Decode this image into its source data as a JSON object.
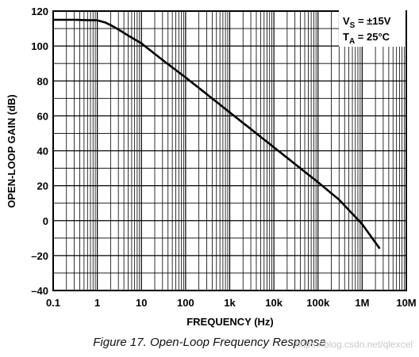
{
  "chart_data": {
    "type": "line",
    "xscale": "log",
    "xlim": [
      0.1,
      10000000
    ],
    "ylim": [
      -40,
      120
    ],
    "xlabel": "FREQUENCY (Hz)",
    "ylabel": "OPEN-LOOP GAIN (dB)",
    "xticks": [
      "0.1",
      "1",
      "10",
      "100",
      "1k",
      "10k",
      "100k",
      "1M",
      "10M"
    ],
    "yticks": [
      "120",
      "100",
      "80",
      "60",
      "40",
      "20",
      "0",
      "–20",
      "–40"
    ],
    "grid": true,
    "annotation": {
      "line1": {
        "main": "V",
        "sub": "S",
        "rest": " = ±15V"
      },
      "line2": {
        "main": "T",
        "sub": "A",
        "rest": " = 25°C"
      }
    },
    "series": [
      {
        "x": [
          0.1,
          0.3,
          1,
          1.5,
          2,
          3,
          5,
          10,
          30,
          100,
          1000,
          10000,
          100000,
          300000,
          1000000,
          2500000
        ],
        "y": [
          115,
          115,
          114.7,
          113.5,
          112,
          109.5,
          106,
          101.5,
          92,
          82,
          62,
          42,
          22,
          12,
          -2,
          -16
        ]
      }
    ]
  },
  "caption": "Figure 17. Open-Loop Frequency Response",
  "watermark": "https://blog.csdn.net/qlexcel"
}
